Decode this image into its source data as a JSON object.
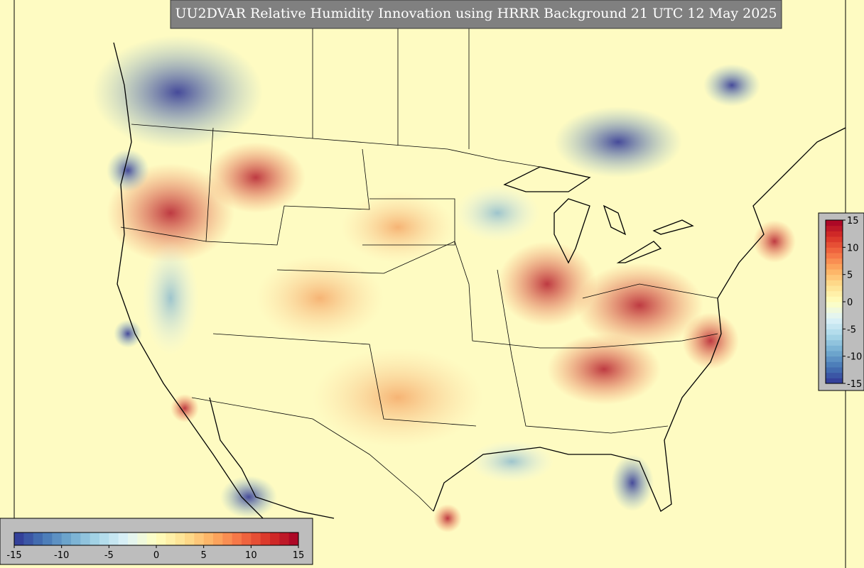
{
  "title": "UU2DVAR Relative Humidity Innovation using HRRR Background 21 UTC 12 May 2025",
  "colormap": [
    "#313695",
    "#4575b4",
    "#74add1",
    "#abd9e9",
    "#e0f3f8",
    "#ffffbf",
    "#fee090",
    "#fdae61",
    "#f46d43",
    "#d73027",
    "#a50026"
  ],
  "colorbars": [
    {
      "orientation": "horizontal",
      "range": [
        -15,
        15
      ],
      "ticks": [
        -15,
        -10,
        -5,
        0,
        5,
        10,
        15
      ]
    },
    {
      "orientation": "vertical",
      "range": [
        -15,
        15
      ],
      "ticks": [
        15,
        10,
        5,
        0,
        -5,
        -10,
        -15
      ]
    }
  ]
}
